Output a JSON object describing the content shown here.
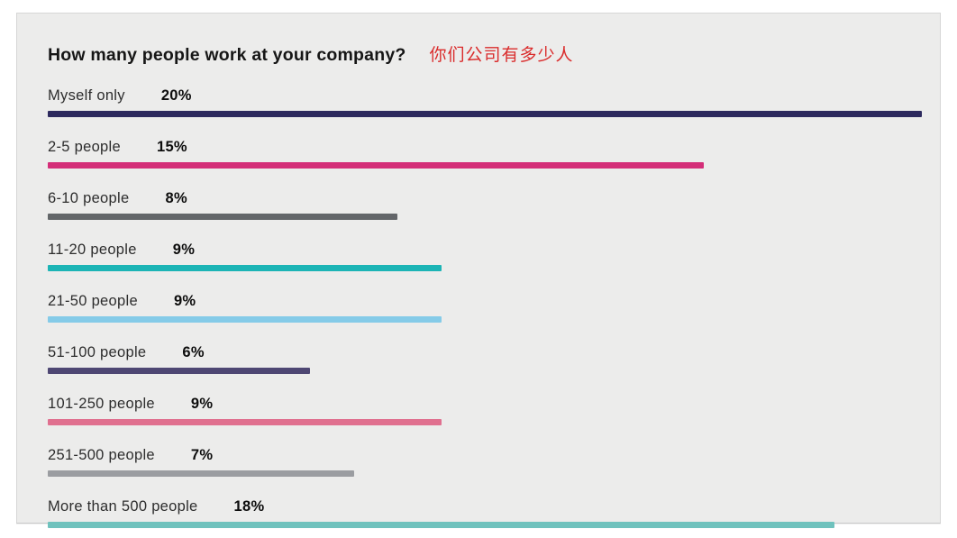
{
  "header": {
    "title": "How many people work at your company?",
    "annotation_cn": "你们公司有多少人",
    "annotation_color": "#da2c2c"
  },
  "chart_data": {
    "type": "bar",
    "orientation": "horizontal",
    "title": "How many people work at your company?",
    "categories": [
      "Myself only",
      "2-5 people",
      "6-10 people",
      "11-20 people",
      "21-50 people",
      "51-100 people",
      "101-250 people",
      "251-500 people",
      "More than 500 people"
    ],
    "values": [
      20,
      15,
      8,
      9,
      9,
      6,
      9,
      7,
      18
    ],
    "value_labels": [
      "20%",
      "15%",
      "8%",
      "9%",
      "9%",
      "6%",
      "9%",
      "7%",
      "18%"
    ],
    "bar_colors": [
      "#2d2a5e",
      "#d42e78",
      "#636669",
      "#1cb4b5",
      "#85cbe8",
      "#4e4773",
      "#e0708f",
      "#9b9da1",
      "#6fc2bd"
    ],
    "xlim": [
      0,
      20
    ],
    "grid": false,
    "legend": false,
    "background_color": "#ececeb"
  }
}
